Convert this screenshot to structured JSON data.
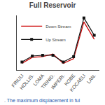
{
  "chart_data": {
    "type": "line",
    "title": "Full Reservoir",
    "categories": [
      "FRIULI",
      "HOLLIS.",
      "LOMA",
      "TRINID.",
      "IMPERI.",
      "KOBE",
      "KOCAELI",
      "LAN."
    ],
    "series": [
      {
        "name": "Down Stream",
        "color": "#cc0000",
        "values": [
          0.4,
          0.85,
          0.9,
          1.1,
          0.4,
          0.75,
          3.5,
          2.2
        ]
      },
      {
        "name": "Up Stream",
        "color": "#111111",
        "marker": "square",
        "values": [
          0.5,
          0.95,
          1.0,
          1.0,
          0.5,
          0.9,
          3.8,
          2.5
        ]
      }
    ],
    "ylim": [
      -0.1,
      3.99
    ],
    "grid": false,
    "legend": "upper left",
    "tick_labels": "x",
    "annotations": [
      ". The maximum displacement in ful"
    ]
  }
}
